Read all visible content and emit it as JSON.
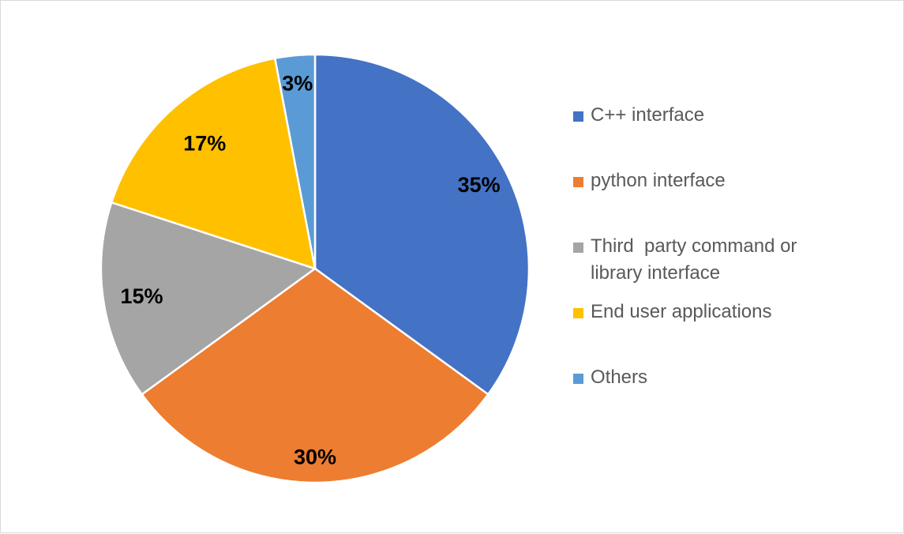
{
  "chart_data": {
    "type": "pie",
    "title": "",
    "legend_position": "right",
    "slices": [
      {
        "label": "C++ interface",
        "value": 35,
        "display": "35%",
        "color": "#4472C4"
      },
      {
        "label": "python interface",
        "value": 30,
        "display": "30%",
        "color": "#ED7D31"
      },
      {
        "label": "Third  party command or library interface",
        "value": 15,
        "display": "15%",
        "color": "#A5A5A5"
      },
      {
        "label": "End user applications",
        "value": 17,
        "display": "17%",
        "color": "#FFC000"
      },
      {
        "label": "Others",
        "value": 3,
        "display": "3%",
        "color": "#5B9BD5"
      }
    ]
  }
}
